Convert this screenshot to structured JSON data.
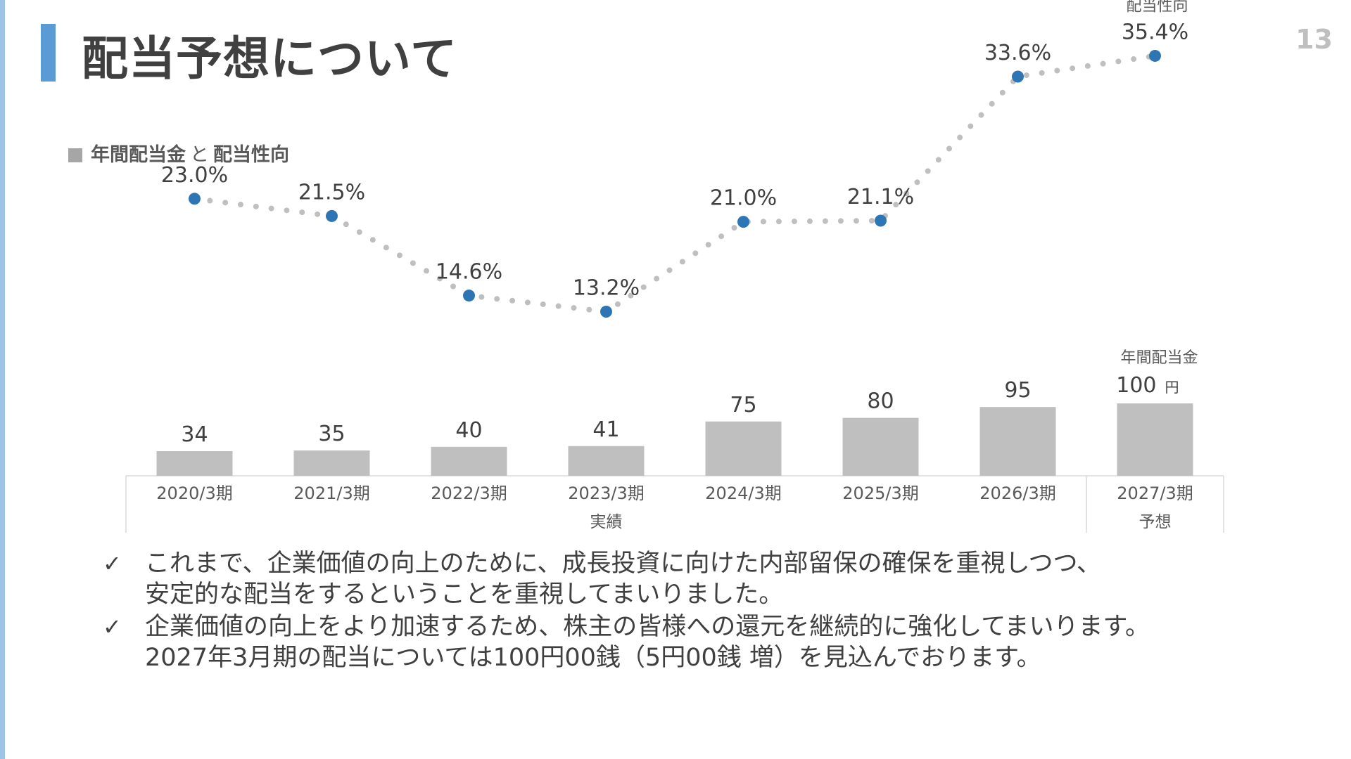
{
  "header": {
    "title": "配当予想について",
    "page_number": "13"
  },
  "legend": {
    "main": "年間配当金",
    "and": "と",
    "secondary": "配当性向"
  },
  "chart_data": {
    "type": "bar",
    "categories": [
      "2020/3期",
      "2021/3期",
      "2022/3期",
      "2023/3期",
      "2024/3期",
      "2025/3期",
      "2026/3期",
      "2027/3期"
    ],
    "series": [
      {
        "name": "年間配当金",
        "type": "bar",
        "values": [
          34,
          35,
          40,
          41,
          75,
          80,
          95,
          100
        ],
        "labels": [
          "34",
          "35",
          "40",
          "41",
          "75",
          "80",
          "95",
          "100"
        ],
        "color": "#bfbfbf"
      },
      {
        "name": "配当性向",
        "type": "line",
        "values": [
          23.0,
          21.5,
          14.6,
          13.2,
          21.0,
          21.1,
          33.6,
          35.4
        ],
        "labels": [
          "23.0%",
          "21.5%",
          "14.6%",
          "13.2%",
          "21.0%",
          "21.1%",
          "33.6%",
          "35.4%"
        ],
        "color": "#2e75b6",
        "line_style": "dotted",
        "line_color": "#bfbfbf"
      }
    ],
    "groups": [
      {
        "label": "実績",
        "from": 0,
        "to": 6
      },
      {
        "label": "予想",
        "from": 7,
        "to": 7
      }
    ],
    "annotations": {
      "bar_series_label": "年間配当金",
      "bar_unit": "円",
      "line_series_label": "配当性向"
    },
    "grid": false
  },
  "bullets": [
    {
      "check": "✓",
      "lines": [
        "これまで、企業価値の向上のために、成長投資に向けた内部留保の確保を重視しつつ、",
        "安定的な配当をするということを重視してまいりました。"
      ]
    },
    {
      "check": "✓",
      "lines": [
        "企業価値の向上をより加速するため、株主の皆様への還元を継続的に強化してまいります。",
        "2027年3月期の配当については100円00銭（5円00銭 増）を見込んでおります。"
      ]
    }
  ]
}
